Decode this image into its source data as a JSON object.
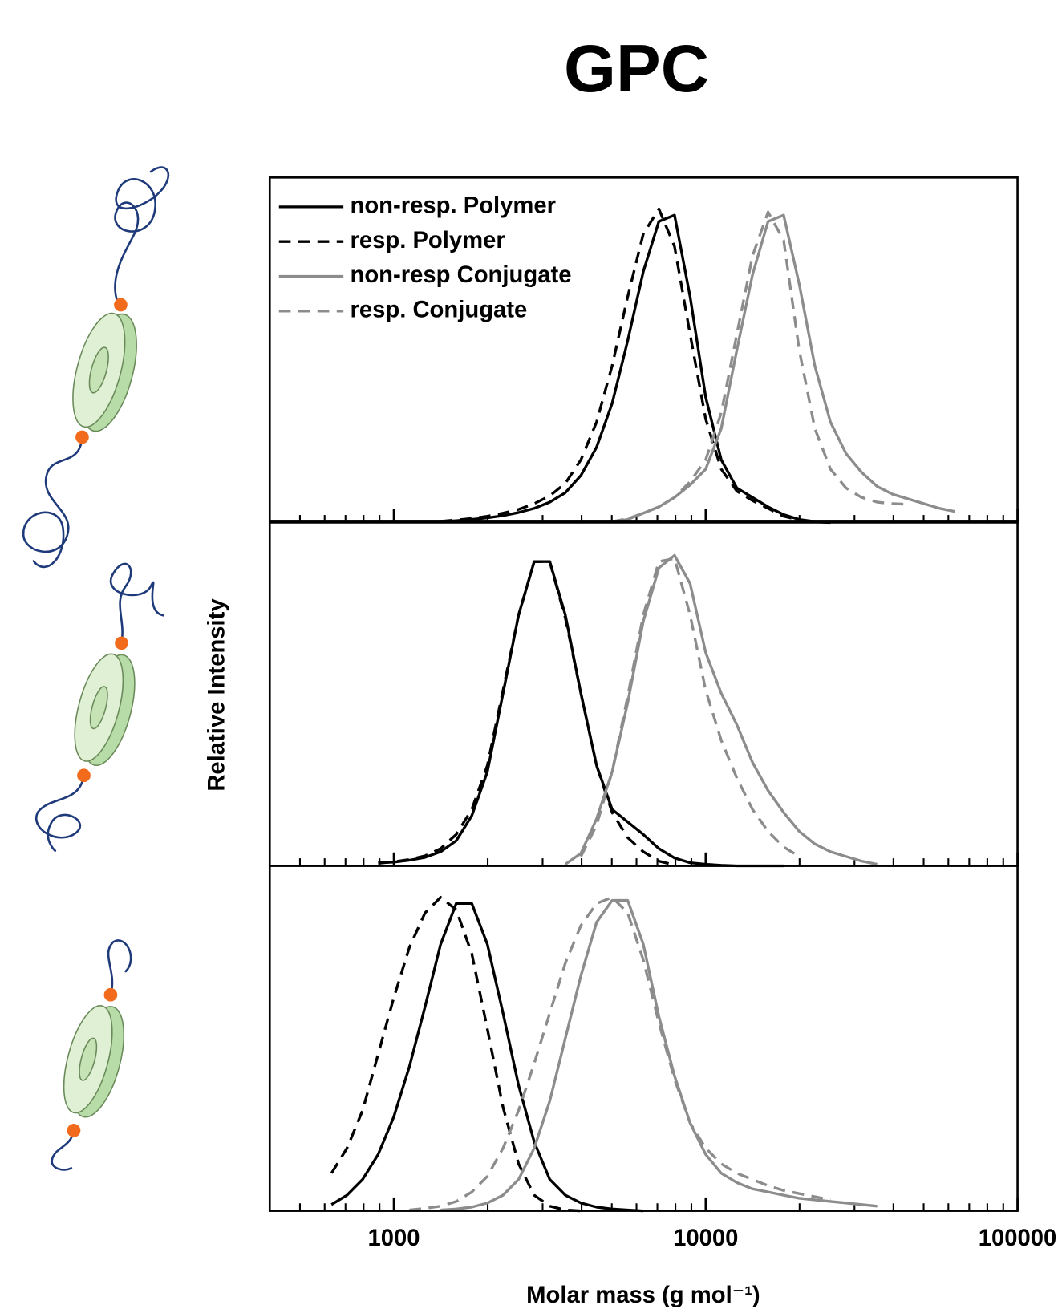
{
  "title": "GPC",
  "xlabel": "Molar mass (g mol⁻¹)",
  "ylabel": "Relative Intensity",
  "chart_data": [
    {
      "type": "line",
      "xscale": "log",
      "legend": "upper left",
      "x": [
        562,
        631,
        708,
        794,
        891,
        1000,
        1122,
        1259,
        1413,
        1585,
        1778,
        1995,
        2239,
        2512,
        2818,
        3162,
        3548,
        3981,
        4467,
        5012,
        5623,
        6310,
        7079,
        7943,
        8913,
        10000,
        11220,
        12589,
        14125,
        15849,
        17783,
        19953,
        22387,
        25119,
        28184,
        31623,
        35481,
        39811,
        44668,
        50119,
        56234,
        63096,
        70795
      ],
      "xlim": [
        400,
        100000
      ],
      "ylim": [
        0,
        1.1
      ],
      "xticks": [
        1000,
        10000,
        100000
      ],
      "minor_xticks": [
        500,
        600,
        700,
        800,
        900,
        2000,
        3000,
        4000,
        5000,
        6000,
        7000,
        8000,
        9000,
        20000,
        30000,
        40000,
        50000,
        60000,
        70000,
        80000,
        90000
      ],
      "series": [
        {
          "name": "non-resp. Polymer",
          "color": "#000000",
          "dash": false,
          "values": [
            null,
            null,
            null,
            null,
            null,
            null,
            null,
            null,
            0.003,
            0.006,
            0.01,
            0.015,
            0.022,
            0.032,
            0.045,
            0.065,
            0.095,
            0.15,
            0.24,
            0.38,
            0.58,
            0.8,
            0.96,
            0.98,
            0.72,
            0.4,
            0.2,
            0.11,
            0.08,
            0.05,
            0.025,
            0.01,
            0.003,
            0,
            null,
            null,
            null,
            null,
            null,
            null,
            null,
            null,
            null
          ]
        },
        {
          "name": "resp. Polymer",
          "color": "#000000",
          "dash": true,
          "values": [
            null,
            null,
            null,
            null,
            null,
            null,
            null,
            null,
            0.004,
            0.008,
            0.013,
            0.02,
            0.03,
            0.042,
            0.06,
            0.085,
            0.125,
            0.2,
            0.32,
            0.5,
            0.72,
            0.92,
            1.0,
            0.88,
            0.6,
            0.33,
            0.17,
            0.1,
            0.07,
            0.045,
            0.02,
            0.008,
            0.002,
            0,
            null,
            null,
            null,
            null,
            null,
            null,
            null,
            null,
            null
          ]
        },
        {
          "name": "non-resp Conjugate",
          "color": "#8c8c8c",
          "dash": false,
          "values": [
            null,
            null,
            null,
            null,
            null,
            null,
            null,
            null,
            null,
            null,
            null,
            null,
            null,
            null,
            null,
            null,
            null,
            null,
            null,
            0.002,
            0.01,
            0.03,
            0.05,
            0.08,
            0.12,
            0.17,
            0.3,
            0.55,
            0.79,
            0.96,
            0.98,
            0.76,
            0.5,
            0.32,
            0.22,
            0.16,
            0.115,
            0.09,
            0.075,
            0.06,
            0.045,
            0.035,
            null
          ]
        },
        {
          "name": "resp. Conjugate",
          "color": "#8c8c8c",
          "dash": true,
          "values": [
            null,
            null,
            null,
            null,
            null,
            null,
            null,
            null,
            null,
            null,
            null,
            null,
            null,
            null,
            null,
            null,
            null,
            null,
            null,
            0.003,
            0.012,
            0.03,
            0.05,
            0.08,
            0.13,
            0.2,
            0.35,
            0.6,
            0.85,
            0.99,
            0.9,
            0.55,
            0.3,
            0.17,
            0.11,
            0.08,
            0.065,
            0.06,
            0.058,
            null,
            null,
            null,
            null
          ]
        }
      ]
    },
    {
      "type": "line",
      "xscale": "log",
      "x": [
        562,
        631,
        708,
        794,
        891,
        1000,
        1122,
        1259,
        1413,
        1585,
        1778,
        1995,
        2239,
        2512,
        2818,
        3162,
        3548,
        3981,
        4467,
        5012,
        5623,
        6310,
        7079,
        7943,
        8913,
        10000,
        11220,
        12589,
        14125,
        15849,
        17783,
        19953,
        22387,
        25119,
        28184,
        31623,
        35481,
        39811,
        44668,
        50119,
        56234,
        63096,
        70795
      ],
      "xlim": [
        400,
        100000
      ],
      "ylim": [
        0,
        1.1
      ],
      "xticks": [
        1000,
        10000,
        100000
      ],
      "minor_xticks": [
        500,
        600,
        700,
        800,
        900,
        2000,
        3000,
        4000,
        5000,
        6000,
        7000,
        8000,
        9000,
        20000,
        30000,
        40000,
        50000,
        60000,
        70000,
        80000,
        90000
      ],
      "series": [
        {
          "color": "#000000",
          "dash": false,
          "values": [
            null,
            null,
            null,
            null,
            0.01,
            0.012,
            0.018,
            0.027,
            0.045,
            0.08,
            0.16,
            0.3,
            0.55,
            0.8,
            0.97,
            0.97,
            0.8,
            0.55,
            0.32,
            0.18,
            0.14,
            0.1,
            0.055,
            0.025,
            0.01,
            0.005,
            0.002,
            0,
            0,
            0,
            0,
            null,
            null,
            null,
            null,
            null,
            null,
            null,
            null,
            null,
            null,
            null,
            null
          ]
        },
        {
          "color": "#000000",
          "dash": true,
          "values": [
            null,
            null,
            null,
            null,
            0.008,
            0.013,
            0.02,
            0.032,
            0.055,
            0.1,
            0.18,
            0.32,
            0.56,
            0.8,
            0.97,
            0.97,
            0.79,
            0.55,
            0.32,
            0.17,
            0.09,
            0.045,
            0.015,
            0.003,
            null,
            null,
            null,
            null,
            null,
            null,
            null,
            null,
            null,
            null,
            null,
            null,
            null,
            null,
            null,
            null,
            null,
            null,
            null
          ]
        },
        {
          "color": "#8c8c8c",
          "dash": false,
          "values": [
            null,
            null,
            null,
            null,
            null,
            null,
            null,
            null,
            null,
            null,
            null,
            null,
            null,
            null,
            null,
            null,
            0.005,
            0.04,
            0.15,
            0.3,
            0.52,
            0.78,
            0.95,
            0.99,
            0.9,
            0.68,
            0.55,
            0.45,
            0.33,
            0.24,
            0.17,
            0.11,
            0.07,
            0.045,
            0.03,
            0.015,
            0.005,
            null,
            null,
            null,
            null,
            null,
            null
          ]
        },
        {
          "color": "#8c8c8c",
          "dash": true,
          "values": [
            null,
            null,
            null,
            null,
            null,
            null,
            null,
            null,
            null,
            null,
            null,
            null,
            null,
            null,
            null,
            null,
            null,
            0.03,
            0.13,
            0.3,
            0.54,
            0.8,
            0.97,
            0.98,
            0.8,
            0.56,
            0.4,
            0.28,
            0.18,
            0.11,
            0.06,
            0.03,
            null,
            null,
            null,
            null,
            null,
            null,
            null,
            null,
            null,
            null,
            null
          ]
        }
      ]
    },
    {
      "type": "line",
      "xscale": "log",
      "x": [
        562,
        631,
        708,
        794,
        891,
        1000,
        1122,
        1259,
        1413,
        1585,
        1778,
        1995,
        2239,
        2512,
        2818,
        3162,
        3548,
        3981,
        4467,
        5012,
        5623,
        6310,
        7079,
        7943,
        8913,
        10000,
        11220,
        12589,
        14125,
        15849,
        17783,
        19953,
        22387,
        25119,
        28184,
        31623,
        35481,
        39811,
        44668,
        50119,
        56234,
        63096,
        70795
      ],
      "xlim": [
        400,
        100000
      ],
      "ylim": [
        0,
        1.1
      ],
      "xticks": [
        1000,
        10000,
        100000
      ],
      "minor_xticks": [
        500,
        600,
        700,
        800,
        900,
        2000,
        3000,
        4000,
        5000,
        6000,
        7000,
        8000,
        9000,
        20000,
        30000,
        40000,
        50000,
        60000,
        70000,
        80000,
        90000
      ],
      "series": [
        {
          "color": "#000000",
          "dash": false,
          "values": [
            null,
            0.02,
            0.05,
            0.1,
            0.18,
            0.3,
            0.46,
            0.65,
            0.85,
            0.98,
            0.98,
            0.85,
            0.63,
            0.4,
            0.22,
            0.1,
            0.05,
            0.025,
            0.012,
            0.006,
            0.003,
            0,
            null,
            null,
            null,
            null,
            null,
            null,
            null,
            null,
            null,
            null,
            null,
            null,
            null,
            null,
            null,
            null,
            null,
            null,
            null,
            null,
            null
          ]
        },
        {
          "color": "#000000",
          "dash": true,
          "values": [
            null,
            0.12,
            0.2,
            0.32,
            0.5,
            0.68,
            0.84,
            0.95,
            1.0,
            0.96,
            0.82,
            0.58,
            0.33,
            0.15,
            0.05,
            0.015,
            0.003,
            0,
            null,
            null,
            null,
            null,
            null,
            null,
            null,
            null,
            null,
            null,
            null,
            null,
            null,
            null,
            null,
            null,
            null,
            null,
            null,
            null,
            null,
            null,
            null,
            null,
            null
          ]
        },
        {
          "color": "#8c8c8c",
          "dash": false,
          "values": [
            null,
            null,
            null,
            null,
            null,
            null,
            null,
            null,
            0.003,
            0.006,
            0.012,
            0.025,
            0.05,
            0.1,
            0.2,
            0.35,
            0.55,
            0.75,
            0.92,
            0.99,
            0.99,
            0.85,
            0.62,
            0.43,
            0.28,
            0.18,
            0.12,
            0.09,
            0.07,
            0.06,
            0.05,
            0.04,
            0.035,
            0.03,
            0.025,
            0.02,
            0.015,
            null,
            null,
            null,
            null,
            null,
            null
          ]
        },
        {
          "color": "#8c8c8c",
          "dash": true,
          "values": [
            null,
            null,
            null,
            null,
            null,
            null,
            0.003,
            0.008,
            0.015,
            0.03,
            0.06,
            0.11,
            0.2,
            0.32,
            0.47,
            0.63,
            0.79,
            0.91,
            0.98,
            1.0,
            0.95,
            0.8,
            0.6,
            0.42,
            0.28,
            0.2,
            0.15,
            0.12,
            0.1,
            0.08,
            0.065,
            0.055,
            0.045,
            0.035,
            null,
            null,
            null,
            null,
            null,
            null,
            null,
            null,
            null
          ]
        }
      ]
    }
  ]
}
